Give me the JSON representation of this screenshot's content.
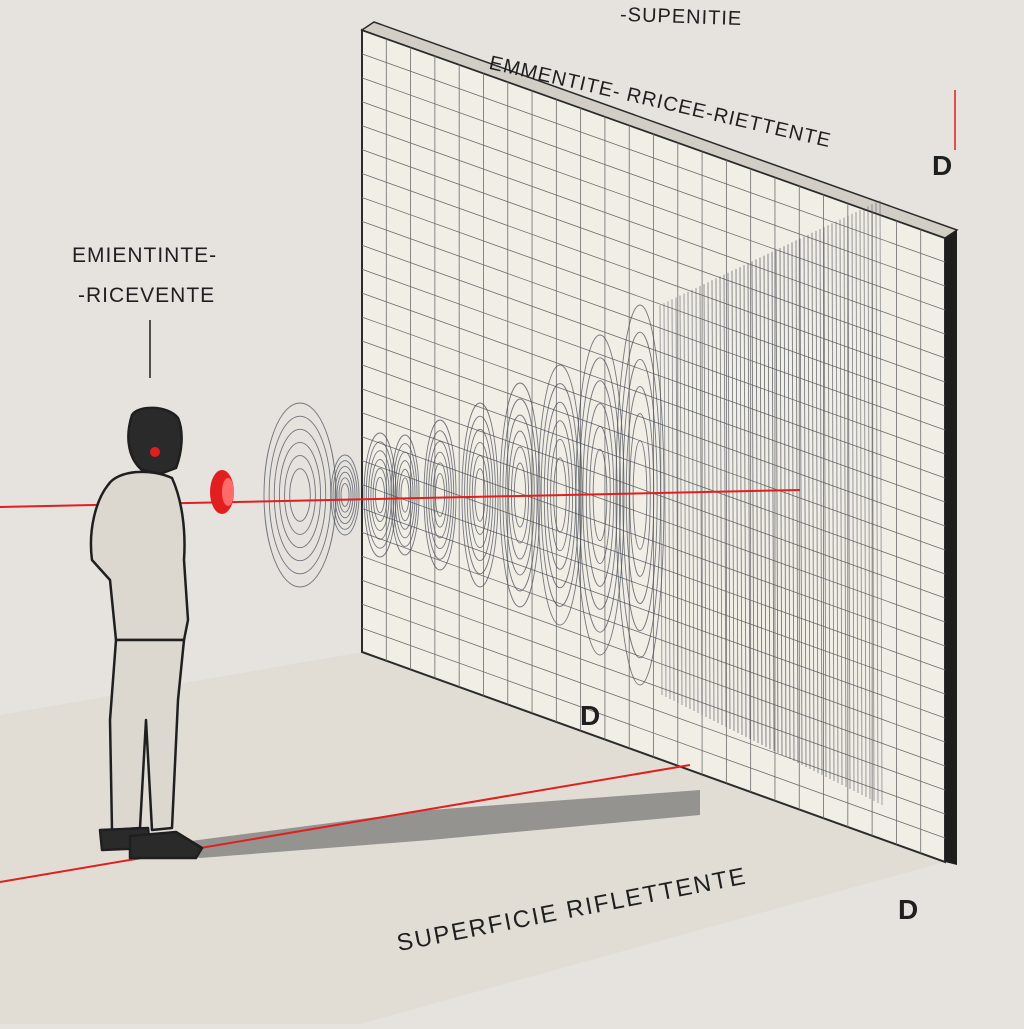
{
  "labels": {
    "top_line1": "-SUPENITIE",
    "top_line2": "EMMENTITE- RRICEE-RIETTENTE",
    "left_line1": "EMIENTINTE-",
    "left_line2": "-RICEVENTE",
    "bottom": "SUPERFICIE RIFLETTENTE",
    "d_top": "D",
    "d_mid": "D",
    "d_bottom": "D"
  },
  "colors": {
    "background": "#e6e3de",
    "wall": "#f1eee6",
    "grid": "#6d6d6d",
    "floor": "#e1ddd5",
    "ray": "#e11f1f",
    "ink": "#1f1f1f",
    "wave": "#4a4f5a"
  }
}
